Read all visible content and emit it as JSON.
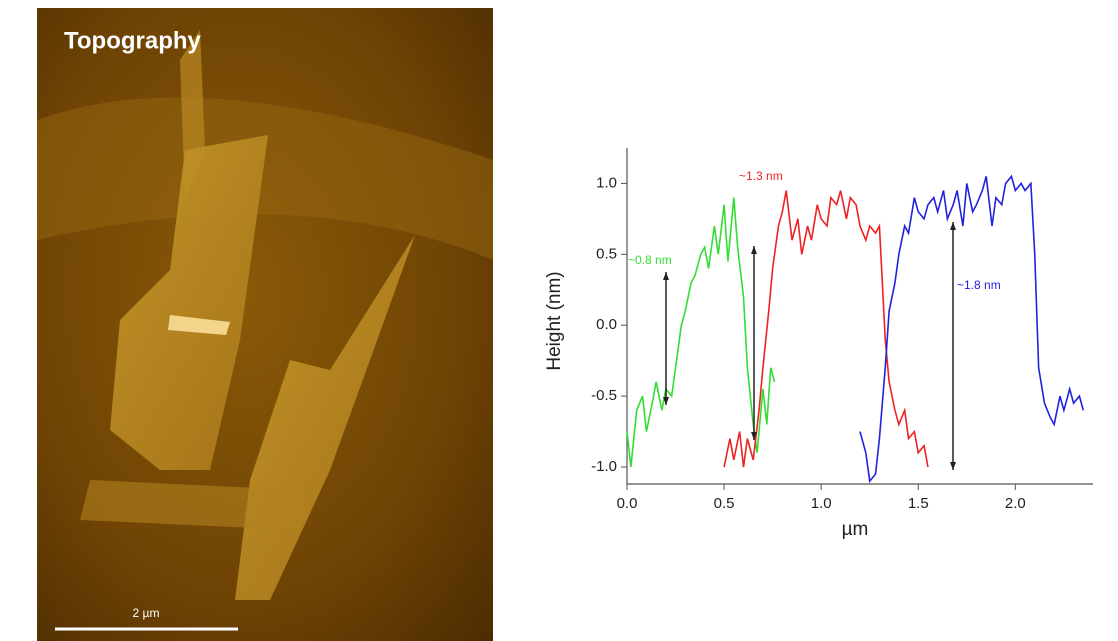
{
  "image": {
    "label": "Topography",
    "scale_bar": "2 µm"
  },
  "chart_data": {
    "type": "line",
    "xlabel": "µm",
    "ylabel": "Height (nm)",
    "xlim": [
      0,
      2.4
    ],
    "ylim": [
      -1.12,
      1.25
    ],
    "xticks": [
      {
        "value": 0,
        "label": "0.0"
      },
      {
        "value": 0.5,
        "label": "0.5"
      },
      {
        "value": 1,
        "label": "1.0"
      },
      {
        "value": 1.5,
        "label": "1.5"
      },
      {
        "value": 2,
        "label": "2.0"
      }
    ],
    "yticks": [
      {
        "value": -1,
        "label": "-1.0"
      },
      {
        "value": -0.5,
        "label": "-0.5"
      },
      {
        "value": 0,
        "label": "0.0"
      },
      {
        "value": 0.5,
        "label": "0.5"
      },
      {
        "value": 1,
        "label": "1.0"
      }
    ],
    "annotations": [
      {
        "text": "~0.8 nm",
        "color": "#33dd33"
      },
      {
        "text": "~1.3 nm",
        "color": "#ee2222"
      },
      {
        "text": "~1.8 nm",
        "color": "#2222dd"
      }
    ],
    "series": [
      {
        "color": "#33dd33",
        "x": [
          0.0,
          0.02,
          0.05,
          0.08,
          0.1,
          0.13,
          0.15,
          0.18,
          0.2,
          0.23,
          0.25,
          0.28,
          0.3,
          0.33,
          0.35,
          0.38,
          0.4,
          0.42,
          0.45,
          0.47,
          0.5,
          0.52,
          0.55,
          0.57,
          0.6,
          0.62,
          0.65,
          0.67,
          0.7,
          0.72,
          0.74,
          0.76
        ],
        "values": [
          -0.75,
          -1.0,
          -0.6,
          -0.5,
          -0.75,
          -0.55,
          -0.4,
          -0.6,
          -0.45,
          -0.5,
          -0.3,
          0.0,
          0.1,
          0.3,
          0.35,
          0.5,
          0.55,
          0.4,
          0.7,
          0.5,
          0.85,
          0.45,
          0.9,
          0.55,
          0.2,
          -0.3,
          -0.7,
          -0.9,
          -0.45,
          -0.7,
          -0.3,
          -0.4
        ]
      },
      {
        "color": "#ee2222",
        "x": [
          0.5,
          0.53,
          0.55,
          0.58,
          0.6,
          0.62,
          0.65,
          0.68,
          0.7,
          0.73,
          0.75,
          0.78,
          0.8,
          0.82,
          0.85,
          0.88,
          0.9,
          0.93,
          0.95,
          0.98,
          1.0,
          1.03,
          1.05,
          1.08,
          1.1,
          1.13,
          1.15,
          1.18,
          1.2,
          1.23,
          1.25,
          1.28,
          1.3,
          1.33,
          1.35,
          1.38,
          1.4,
          1.43,
          1.45,
          1.48,
          1.5,
          1.53,
          1.55
        ],
        "values": [
          -1.0,
          -0.8,
          -0.95,
          -0.75,
          -1.0,
          -0.8,
          -0.95,
          -0.6,
          -0.3,
          0.1,
          0.4,
          0.7,
          0.8,
          0.95,
          0.6,
          0.75,
          0.5,
          0.7,
          0.6,
          0.85,
          0.75,
          0.7,
          0.9,
          0.85,
          0.95,
          0.75,
          0.9,
          0.85,
          0.7,
          0.6,
          0.7,
          0.65,
          0.7,
          -0.1,
          -0.4,
          -0.6,
          -0.7,
          -0.6,
          -0.8,
          -0.75,
          -0.9,
          -0.85,
          -1.0
        ]
      },
      {
        "color": "#2222dd",
        "x": [
          1.2,
          1.23,
          1.25,
          1.28,
          1.3,
          1.33,
          1.35,
          1.38,
          1.4,
          1.43,
          1.45,
          1.48,
          1.5,
          1.53,
          1.55,
          1.58,
          1.6,
          1.63,
          1.65,
          1.68,
          1.7,
          1.73,
          1.75,
          1.78,
          1.8,
          1.83,
          1.85,
          1.88,
          1.9,
          1.93,
          1.95,
          1.98,
          2.0,
          2.03,
          2.05,
          2.08,
          2.1,
          2.12,
          2.15,
          2.18,
          2.2,
          2.23,
          2.25,
          2.28,
          2.3,
          2.33,
          2.35
        ],
        "values": [
          -0.75,
          -0.9,
          -1.1,
          -1.05,
          -0.8,
          -0.3,
          0.1,
          0.3,
          0.5,
          0.7,
          0.65,
          0.9,
          0.8,
          0.75,
          0.85,
          0.9,
          0.8,
          0.95,
          0.75,
          0.85,
          0.95,
          0.7,
          1.0,
          0.8,
          0.85,
          0.95,
          1.05,
          0.7,
          0.9,
          0.85,
          1.0,
          1.05,
          0.95,
          1.0,
          0.95,
          1.0,
          0.5,
          -0.3,
          -0.55,
          -0.65,
          -0.7,
          -0.5,
          -0.6,
          -0.45,
          -0.55,
          -0.5,
          -0.6
        ]
      }
    ]
  }
}
